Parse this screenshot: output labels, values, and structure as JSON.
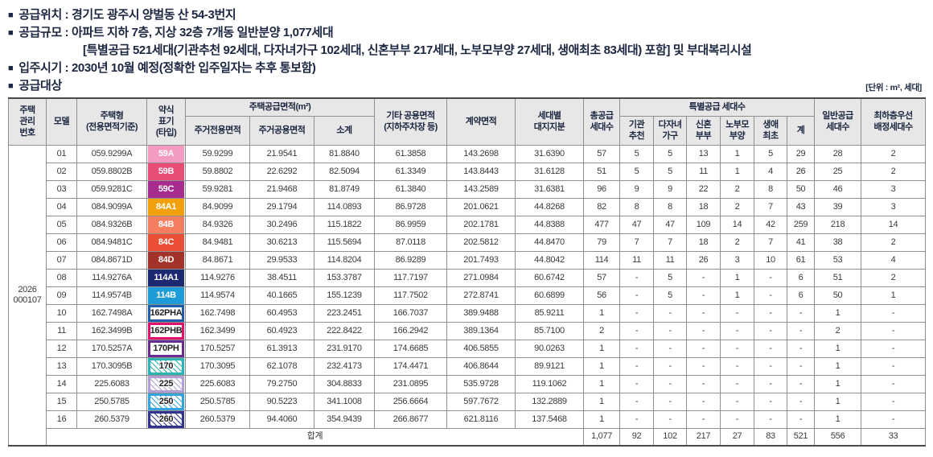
{
  "page": {
    "info_lines": [
      {
        "bullet": true,
        "indent": false,
        "text": "공급위치 : 경기도 광주시 양벌동 산 54-3번지"
      },
      {
        "bullet": true,
        "indent": false,
        "text": "공급규모 : 아파트 지하 7층, 지상 32층 7개동 일반분양 1,077세대"
      },
      {
        "bullet": false,
        "indent": true,
        "text": "[특별공급 521세대(기관추천 92세대, 다자녀가구 102세대, 신혼부부 217세대, 노부모부양 27세대, 생애최초 83세대) 포함] 및 부대복리시설"
      },
      {
        "bullet": true,
        "indent": false,
        "text": "입주시기 : 2030년 10월 예정(정확한 입주일자는 추후 통보함)"
      },
      {
        "bullet": true,
        "indent": false,
        "text": "공급대상"
      }
    ],
    "unit_note": "[단위 : m², 세대]"
  },
  "theme": {
    "header_bg": "#e7e7e7",
    "text_dark": "#1b2640",
    "border_gray": "#8f8f8f"
  },
  "table": {
    "headers": {
      "management": "주택\n관리\n번호",
      "model": "모델",
      "type_name": "주택형\n(전용면적기준)",
      "type_abbr": "약식\n표기\n(타입)",
      "supply_area_group": "주택공급면적(m²)",
      "exclusive_area": "주거전용면적",
      "common_area": "주거공용면적",
      "subtotal": "소계",
      "other_area": "기타 공용면적\n(지하주차장 등)",
      "contract_area": "계약면적",
      "land_share": "세대별\n대지지분",
      "total_units": "총공급\n세대수",
      "special_group": "특별공급 세대수",
      "special_cols": [
        "기관\n추천",
        "다자녀\n가구",
        "신혼\n부부",
        "노부모\n부양",
        "생애\n최초",
        "계"
      ],
      "general_units": "일반공급\n세대수",
      "lowest_floor": "최하층우선\n배정세대수"
    },
    "management_number": [
      "2026",
      "000107"
    ],
    "rows": [
      {
        "no": "01",
        "type_name": "059.9299A",
        "type": {
          "label": "59A",
          "variant": "solid",
          "color": "#F49BC1"
        },
        "cells": [
          "59.9299",
          "21.9541",
          "81.8840",
          "61.3858",
          "143.2698",
          "31.6390",
          "57",
          "5",
          "5",
          "13",
          "1",
          "5",
          "29",
          "28",
          "2"
        ]
      },
      {
        "no": "02",
        "type_name": "059.8802B",
        "type": {
          "label": "59B",
          "variant": "solid",
          "color": "#E84D75"
        },
        "cells": [
          "59.8802",
          "22.6292",
          "82.5094",
          "61.3349",
          "143.8443",
          "31.6128",
          "51",
          "5",
          "5",
          "11",
          "1",
          "4",
          "26",
          "25",
          "2"
        ]
      },
      {
        "no": "03",
        "type_name": "059.9281C",
        "type": {
          "label": "59C",
          "variant": "solid",
          "color": "#A62C8E"
        },
        "cells": [
          "59.9281",
          "21.9468",
          "81.8749",
          "61.3840",
          "143.2589",
          "31.6381",
          "96",
          "9",
          "9",
          "22",
          "2",
          "8",
          "50",
          "46",
          "3"
        ]
      },
      {
        "no": "04",
        "type_name": "084.9099A",
        "type": {
          "label": "84A1",
          "variant": "solid",
          "color": "#F2A00C"
        },
        "cells": [
          "84.9099",
          "29.1794",
          "114.0893",
          "86.9728",
          "201.0621",
          "44.8268",
          "82",
          "8",
          "8",
          "18",
          "2",
          "7",
          "43",
          "39",
          "3"
        ]
      },
      {
        "no": "05",
        "type_name": "084.9326B",
        "type": {
          "label": "84B",
          "variant": "solid",
          "color": "#F47E60"
        },
        "cells": [
          "84.9326",
          "30.2496",
          "115.1822",
          "86.9959",
          "202.1781",
          "44.8388",
          "477",
          "47",
          "47",
          "109",
          "14",
          "42",
          "259",
          "218",
          "14"
        ]
      },
      {
        "no": "06",
        "type_name": "084.9481C",
        "type": {
          "label": "84C",
          "variant": "solid",
          "color": "#EA4E35"
        },
        "cells": [
          "84.9481",
          "30.6213",
          "115.5694",
          "87.0118",
          "202.5812",
          "44.8470",
          "79",
          "7",
          "7",
          "18",
          "2",
          "7",
          "41",
          "38",
          "2"
        ]
      },
      {
        "no": "07",
        "type_name": "084.8671D",
        "type": {
          "label": "84D",
          "variant": "solid",
          "color": "#A3322A"
        },
        "cells": [
          "84.8671",
          "29.9533",
          "114.8204",
          "86.9289",
          "201.7493",
          "44.8042",
          "114",
          "11",
          "11",
          "26",
          "3",
          "10",
          "61",
          "53",
          "4"
        ]
      },
      {
        "no": "08",
        "type_name": "114.9276A",
        "type": {
          "label": "114A1",
          "variant": "solid",
          "color": "#1D2873"
        },
        "cells": [
          "114.9276",
          "38.4511",
          "153.3787",
          "117.7197",
          "271.0984",
          "60.6742",
          "57",
          "-",
          "5",
          "-",
          "1",
          "-",
          "6",
          "51",
          "2"
        ]
      },
      {
        "no": "09",
        "type_name": "114.9574B",
        "type": {
          "label": "114B",
          "variant": "solid",
          "color": "#1E9CD7"
        },
        "cells": [
          "114.9574",
          "40.1665",
          "155.1239",
          "117.7502",
          "272.8741",
          "60.6899",
          "56",
          "-",
          "5",
          "-",
          "1",
          "-",
          "6",
          "50",
          "1"
        ]
      },
      {
        "no": "10",
        "type_name": "162.7498A",
        "type": {
          "label": "162PHA",
          "variant": "outline",
          "color": "#1F5CAC"
        },
        "cells": [
          "162.7498",
          "60.4953",
          "223.2451",
          "166.7037",
          "389.9488",
          "85.9211",
          "1",
          "-",
          "-",
          "-",
          "-",
          "-",
          "-",
          "1",
          "-"
        ]
      },
      {
        "no": "11",
        "type_name": "162.3499B",
        "type": {
          "label": "162PHB",
          "variant": "outline",
          "color": "#E50F6E"
        },
        "cells": [
          "162.3499",
          "60.4923",
          "222.8422",
          "166.2942",
          "389.1364",
          "85.7100",
          "2",
          "-",
          "-",
          "-",
          "-",
          "-",
          "-",
          "2",
          "-"
        ]
      },
      {
        "no": "12",
        "type_name": "170.5257A",
        "type": {
          "label": "170PH",
          "variant": "outline",
          "color": "#652D90"
        },
        "cells": [
          "170.5257",
          "61.3913",
          "231.9170",
          "174.6685",
          "406.5855",
          "90.0263",
          "1",
          "-",
          "-",
          "-",
          "-",
          "-",
          "-",
          "1",
          "-"
        ]
      },
      {
        "no": "13",
        "type_name": "170.3095B",
        "type": {
          "label": "170",
          "variant": "hatch",
          "color": "#2BB4B1"
        },
        "cells": [
          "170.3095",
          "62.1078",
          "232.4173",
          "174.4471",
          "406.8644",
          "89.9121",
          "1",
          "-",
          "-",
          "-",
          "-",
          "-",
          "-",
          "1",
          "-"
        ]
      },
      {
        "no": "14",
        "type_name": "225.6083",
        "type": {
          "label": "225",
          "variant": "hatch",
          "color": "#B2A0D5"
        },
        "cells": [
          "225.6083",
          "79.2750",
          "304.8833",
          "231.0895",
          "535.9728",
          "119.1062",
          "1",
          "-",
          "-",
          "-",
          "-",
          "-",
          "-",
          "1",
          "-"
        ]
      },
      {
        "no": "15",
        "type_name": "250.5785",
        "type": {
          "label": "250",
          "variant": "hatch",
          "color": "#35A4DC"
        },
        "cells": [
          "250.5785",
          "90.5223",
          "341.1008",
          "256.6664",
          "597.7672",
          "132.2889",
          "1",
          "-",
          "-",
          "-",
          "-",
          "-",
          "-",
          "1",
          "-"
        ]
      },
      {
        "no": "16",
        "type_name": "260.5379",
        "type": {
          "label": "260",
          "variant": "hatch",
          "color": "#31348F"
        },
        "cells": [
          "260.5379",
          "94.4060",
          "354.9439",
          "266.8677",
          "621.8116",
          "137.5468",
          "1",
          "-",
          "-",
          "-",
          "-",
          "-",
          "-",
          "1",
          "-"
        ]
      }
    ],
    "total_row": {
      "label": "합계",
      "values": [
        "1,077",
        "92",
        "102",
        "217",
        "27",
        "83",
        "521",
        "556",
        "33"
      ]
    }
  }
}
